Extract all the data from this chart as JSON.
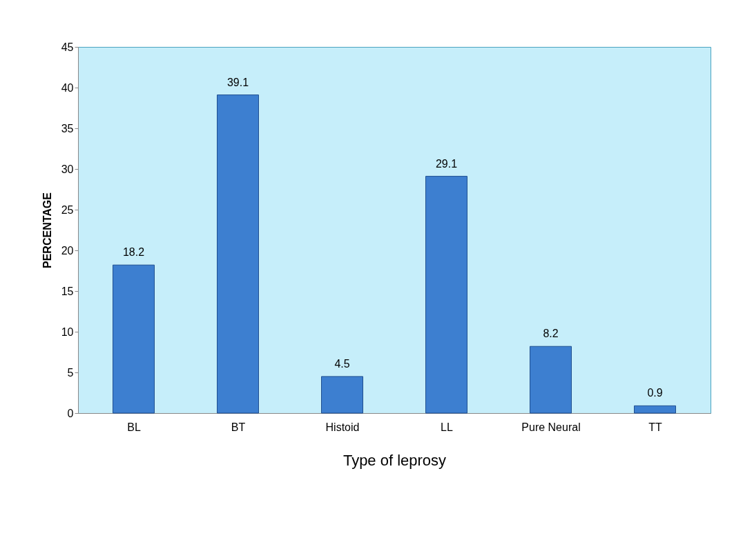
{
  "chart_data": {
    "type": "bar",
    "xlabel": "Type of leprosy",
    "ylabel": "PERCENTAGE",
    "categories": [
      "BL",
      "BT",
      "Histoid",
      "LL",
      "Pure Neural",
      "TT"
    ],
    "values": [
      18.2,
      39.1,
      4.5,
      29.1,
      8.2,
      0.9
    ],
    "color": "#3d7fd0",
    "ylim": [
      0,
      45
    ],
    "yticks": [
      0,
      5,
      10,
      15,
      20,
      25,
      30,
      35,
      40,
      45
    ],
    "grid": false,
    "data_labels": true
  }
}
